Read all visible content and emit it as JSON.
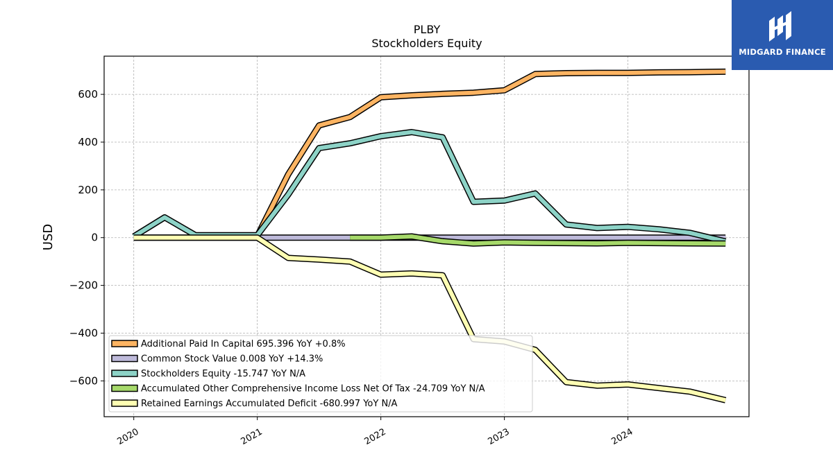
{
  "brand": {
    "name": "MIDGARD FINANCE",
    "color": "#2a5bb0"
  },
  "chart_data": {
    "type": "line",
    "title": "PLBY",
    "subtitle": "Stockholders  Equity",
    "ylabel": "USD",
    "xlabel": "",
    "ylim": [
      -750,
      760
    ],
    "xlim": [
      2019.76,
      2024.98
    ],
    "yticks": [
      -600,
      -400,
      -200,
      0,
      200,
      400,
      600
    ],
    "ytick_labels": [
      "−600",
      "−400",
      "−200",
      "0",
      "200",
      "400",
      "600"
    ],
    "xticks": [
      2020,
      2021,
      2022,
      2023,
      2024
    ],
    "xtick_labels": [
      "2020",
      "2021",
      "2022",
      "2023",
      "2024"
    ],
    "grid": true,
    "legend_position": "lower-left",
    "series": [
      {
        "name": "Additional Paid In Capital  695.396 YoY +0.8%",
        "color": "#fdb462",
        "x": [
          2021.0,
          2021.25,
          2021.5,
          2021.75,
          2022.0,
          2022.25,
          2022.5,
          2022.75,
          2023.0,
          2023.25,
          2023.5,
          2023.75,
          2024.0,
          2024.25,
          2024.5,
          2024.79
        ],
        "values": [
          7,
          265,
          470,
          505,
          588,
          596,
          602,
          607,
          617,
          685,
          689,
          690,
          690,
          692,
          693,
          695
        ]
      },
      {
        "name": "Common Stock Value  0.008 YoY +14.3%",
        "color": "#bebada",
        "x": [
          2020.0,
          2024.79
        ],
        "values": [
          0,
          0
        ]
      },
      {
        "name": "Stockholders Equity  -15.747 YoY N/A",
        "color": "#8dd3c7",
        "x": [
          2020.0,
          2020.25,
          2020.5,
          2020.75,
          2021.0,
          2021.25,
          2021.5,
          2021.75,
          2022.0,
          2022.25,
          2022.5,
          2022.75,
          2023.0,
          2023.25,
          2023.5,
          2023.75,
          2024.0,
          2024.25,
          2024.5,
          2024.79
        ],
        "values": [
          5,
          85,
          10,
          10,
          10,
          180,
          375,
          395,
          425,
          442,
          420,
          150,
          155,
          185,
          55,
          40,
          45,
          35,
          20,
          -16
        ]
      },
      {
        "name": "Accumulated Other Comprehensive Income Loss Net Of Tax  -24.709 YoY N/A",
        "color": "#a6d96a",
        "x": [
          2021.75,
          2022.0,
          2022.25,
          2022.5,
          2022.75,
          2023.0,
          2023.25,
          2023.5,
          2023.75,
          2024.0,
          2024.25,
          2024.5,
          2024.79
        ],
        "values": [
          0,
          0,
          5,
          -15,
          -25,
          -20,
          -22,
          -23,
          -24,
          -22,
          -23,
          -24,
          -25
        ]
      },
      {
        "name": "Retained Earnings Accumulated Deficit  -680.997 YoY N/A",
        "color": "#ffffb3",
        "x": [
          2020.0,
          2020.5,
          2021.0,
          2021.25,
          2021.5,
          2021.75,
          2022.0,
          2022.25,
          2022.5,
          2022.75,
          2023.0,
          2023.25,
          2023.5,
          2023.75,
          2024.0,
          2024.25,
          2024.5,
          2024.79
        ],
        "values": [
          0,
          0,
          0,
          -85,
          -92,
          -100,
          -155,
          -150,
          -158,
          -425,
          -435,
          -470,
          -605,
          -620,
          -615,
          -630,
          -645,
          -681
        ]
      }
    ]
  }
}
